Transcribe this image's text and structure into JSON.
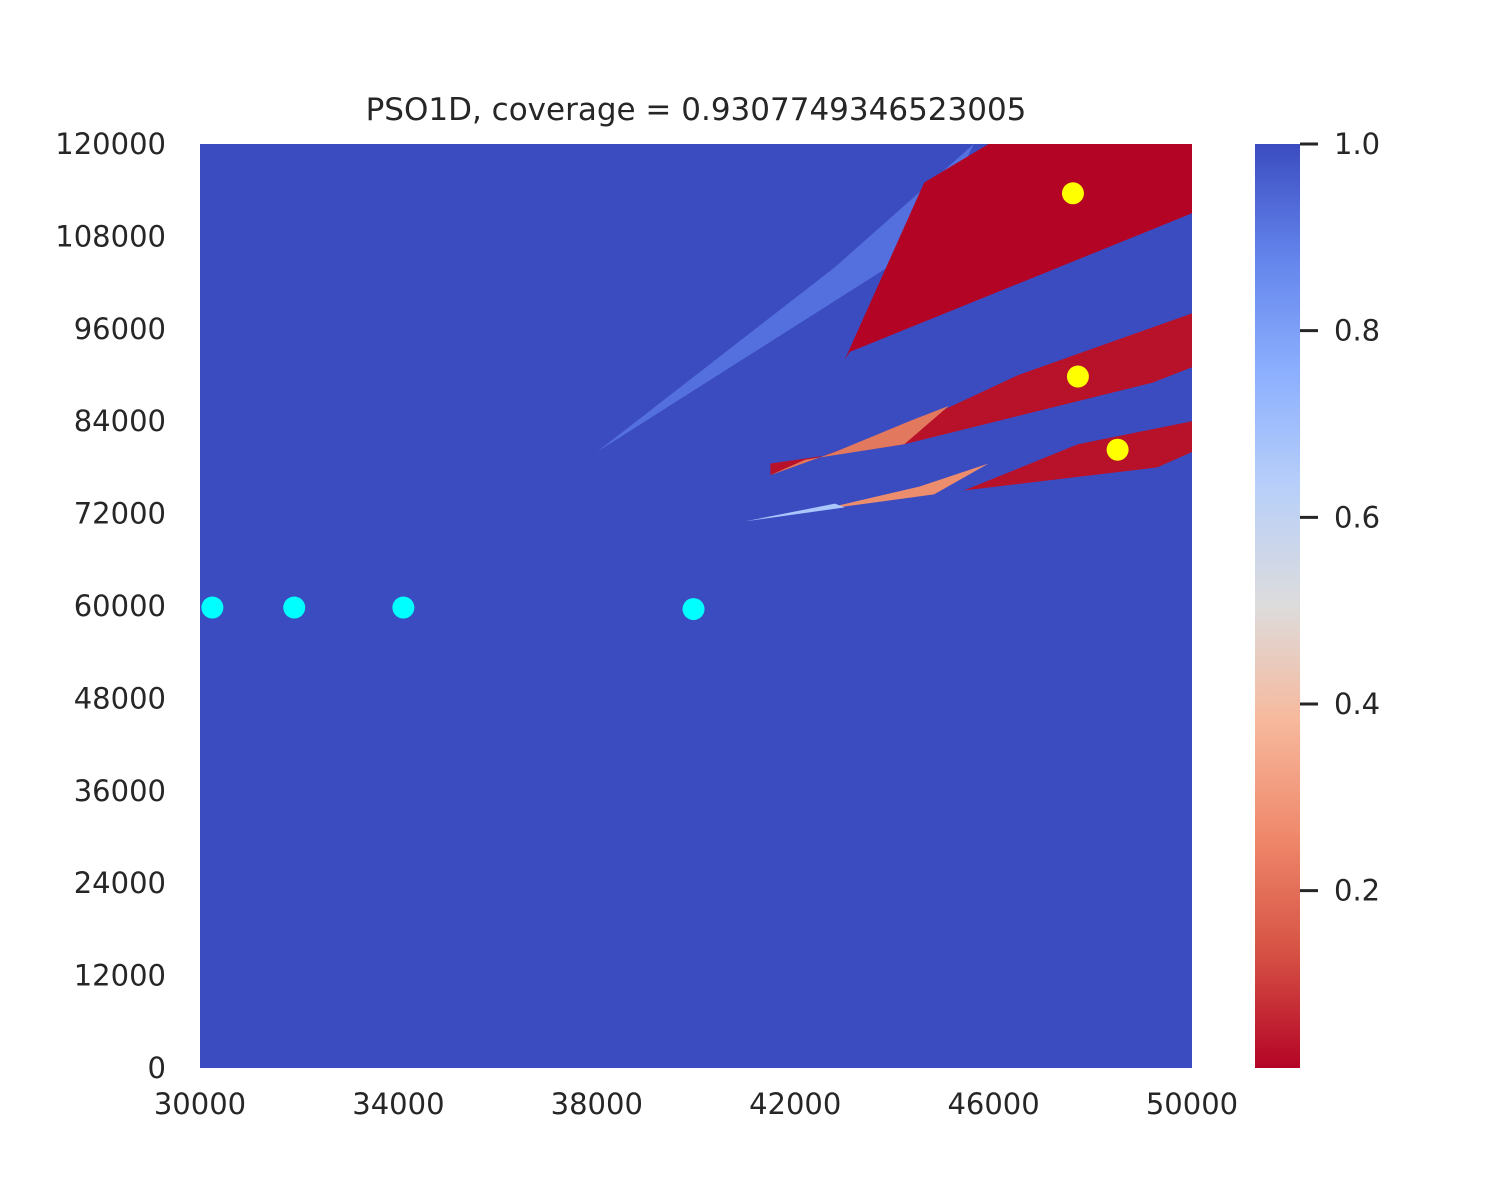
{
  "chart_data": {
    "type": "heatmap",
    "title": "PSO1D, coverage = 0.9307749346523005",
    "xlabel": "",
    "ylabel": "",
    "xlim": [
      30000,
      50000
    ],
    "ylim": [
      0,
      120000
    ],
    "x_ticks": [
      "30000",
      "34000",
      "38000",
      "42000",
      "46000",
      "50000"
    ],
    "y_ticks": [
      "0",
      "12000",
      "24000",
      "36000",
      "48000",
      "60000",
      "72000",
      "84000",
      "96000",
      "108000",
      "120000"
    ],
    "colormap": "coolwarm",
    "background_value": 1.0,
    "background_color": "#3b4cc0",
    "colorbar": {
      "range": [
        0.01,
        1.0
      ],
      "ticks": [
        "0.2",
        "0.4",
        "0.6",
        "0.8",
        "1.0"
      ],
      "stops": [
        {
          "value": 0.0,
          "color": "#b40426"
        },
        {
          "value": 0.125,
          "color": "#d65244"
        },
        {
          "value": 0.25,
          "color": "#ef886b"
        },
        {
          "value": 0.375,
          "color": "#f7b89c"
        },
        {
          "value": 0.5,
          "color": "#dddcdc"
        },
        {
          "value": 0.625,
          "color": "#b9d0f9"
        },
        {
          "value": 0.75,
          "color": "#8db0fe"
        },
        {
          "value": 0.875,
          "color": "#6485ec"
        },
        {
          "value": 1.0,
          "color": "#3b4cc0"
        }
      ]
    },
    "regions": [
      {
        "name": "upper-light-wedge",
        "value": 0.9,
        "color": "#5470de",
        "polygon": [
          [
            38000,
            80000
          ],
          [
            44600,
            107000
          ],
          [
            45600,
            120000
          ],
          [
            42800,
            104000
          ]
        ]
      },
      {
        "name": "upper-red-region",
        "value": 0.02,
        "color": "#b40426",
        "polygon": [
          [
            43000,
            92000
          ],
          [
            44600,
            115000
          ],
          [
            45900,
            120000
          ],
          [
            50000,
            120000
          ],
          [
            50000,
            111000
          ],
          [
            43100,
            93000
          ]
        ]
      },
      {
        "name": "middle-red-region",
        "value": 0.03,
        "color": "#b8122a",
        "polygon": [
          [
            41500,
            77000
          ],
          [
            44500,
            84000
          ],
          [
            46500,
            90000
          ],
          [
            50000,
            98000
          ],
          [
            50000,
            91000
          ],
          [
            49200,
            89000
          ],
          [
            44200,
            81000
          ],
          [
            41500,
            78500
          ]
        ]
      },
      {
        "name": "middle-salmon-band",
        "value": 0.3,
        "color": "#e2795f",
        "polygon": [
          [
            41500,
            77000
          ],
          [
            42800,
            80000
          ],
          [
            44300,
            84000
          ],
          [
            45100,
            86000
          ],
          [
            44200,
            81000
          ],
          [
            42200,
            79000
          ]
        ]
      },
      {
        "name": "lower-red-region",
        "value": 0.03,
        "color": "#b8122a",
        "polygon": [
          [
            45400,
            75000
          ],
          [
            47700,
            81000
          ],
          [
            50000,
            84000
          ],
          [
            50000,
            80000
          ],
          [
            49300,
            78000
          ]
        ]
      },
      {
        "name": "lower-salmon-band",
        "value": 0.3,
        "color": "#ec8d6e",
        "polygon": [
          [
            42500,
            72500
          ],
          [
            44500,
            75500
          ],
          [
            45900,
            78500
          ],
          [
            44800,
            74500
          ]
        ]
      },
      {
        "name": "lower-pale-sliver",
        "value": 0.65,
        "color": "#a9c6fd",
        "polygon": [
          [
            41000,
            71000
          ],
          [
            42800,
            73300
          ],
          [
            43000,
            72800
          ]
        ]
      }
    ],
    "points": [
      {
        "x": 30250,
        "y": 59800,
        "group": "cyan",
        "color": "#00ffff"
      },
      {
        "x": 31900,
        "y": 59800,
        "group": "cyan",
        "color": "#00ffff"
      },
      {
        "x": 34100,
        "y": 59800,
        "group": "cyan",
        "color": "#00ffff"
      },
      {
        "x": 39950,
        "y": 59600,
        "group": "cyan",
        "color": "#00ffff"
      },
      {
        "x": 47600,
        "y": 113600,
        "group": "yellow",
        "color": "#ffff00"
      },
      {
        "x": 47700,
        "y": 89800,
        "group": "yellow",
        "color": "#ffff00"
      },
      {
        "x": 48500,
        "y": 80300,
        "group": "yellow",
        "color": "#ffff00"
      }
    ]
  }
}
